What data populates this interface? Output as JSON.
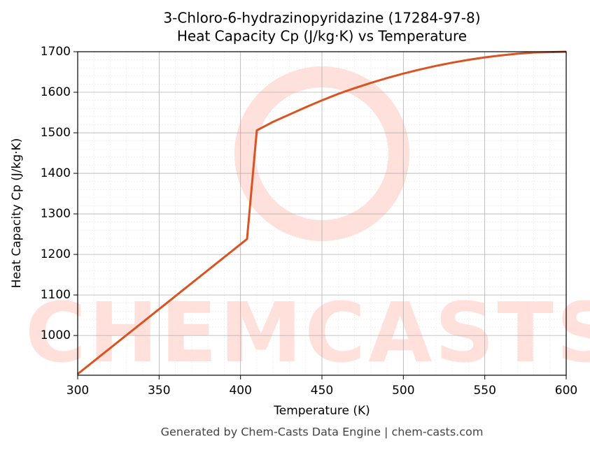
{
  "chart_data": {
    "type": "line",
    "title": "3-Chloro-6-hydrazinopyridazine (17284-97-8)",
    "subtitle": "Heat Capacity Cp (J/kg·K) vs Temperature",
    "x_label": "Temperature (K)",
    "y_label": "Heat Capacity Cp (J/kg·K)",
    "watermark": "CHEMCASTS",
    "footer": "Generated by Chem-Casts Data Engine | chem-casts.com",
    "x": [
      300,
      404,
      410,
      420,
      430,
      440,
      450,
      460,
      470,
      480,
      490,
      500,
      510,
      520,
      530,
      540,
      550,
      560,
      570,
      580,
      590,
      600
    ],
    "series": [
      {
        "name": "Cp",
        "color": "#d95323",
        "values": [
          905,
          1238,
          1506,
          1527,
          1545,
          1563,
          1580,
          1596,
          1610,
          1623,
          1635,
          1646,
          1656,
          1665,
          1673,
          1680,
          1686,
          1691,
          1695,
          1698,
          1699,
          1700
        ]
      }
    ],
    "xlim": [
      300,
      600
    ],
    "ylim": [
      902,
      1700
    ],
    "xticks": [
      300,
      350,
      400,
      450,
      500,
      550,
      600
    ],
    "yticks": [
      1000,
      1100,
      1200,
      1300,
      1400,
      1500,
      1600,
      1700
    ],
    "grid": true
  }
}
